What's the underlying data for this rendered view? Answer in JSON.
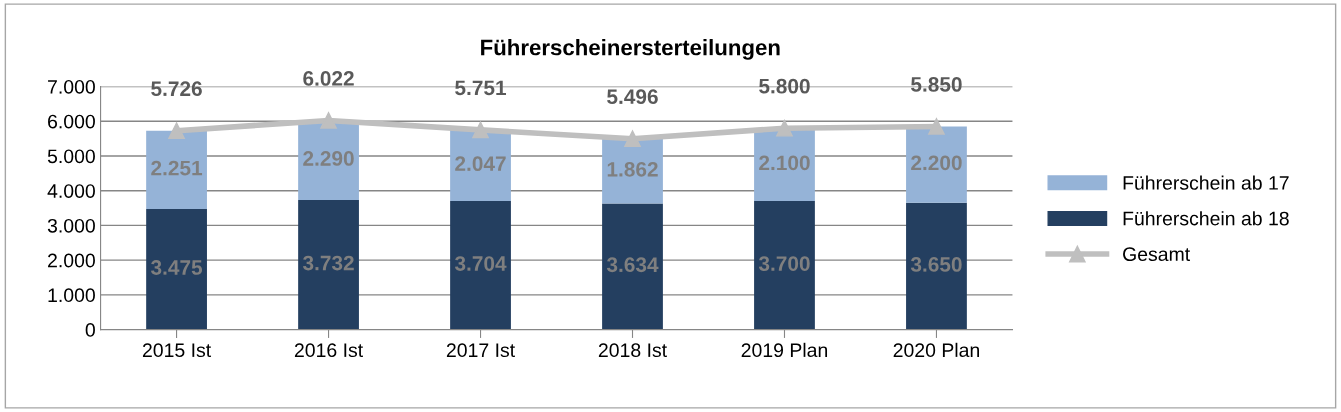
{
  "chart_data": {
    "type": "bar",
    "title": "Führerscheinersterteilungen",
    "stacked": true,
    "categories": [
      "2015 Ist",
      "2016 Ist",
      "2017 Ist",
      "2018 Ist",
      "2019 Plan",
      "2020 Plan"
    ],
    "series": [
      {
        "name": "Führerschein ab 18",
        "color": "#243f60",
        "values": [
          3475,
          3732,
          3704,
          3634,
          3700,
          3650
        ],
        "value_labels": [
          "3.475",
          "3.732",
          "3.704",
          "3.634",
          "3.700",
          "3.650"
        ]
      },
      {
        "name": "Führerschein ab 17",
        "color": "#95b3d7",
        "values": [
          2251,
          2290,
          2047,
          1862,
          2100,
          2200
        ],
        "value_labels": [
          "2.251",
          "2.290",
          "2.047",
          "1.862",
          "2.100",
          "2.200"
        ]
      },
      {
        "name": "Gesamt",
        "type": "line",
        "color": "#bfbfbf",
        "marker": "triangle",
        "values": [
          5726,
          6022,
          5751,
          5496,
          5800,
          5850
        ],
        "value_labels": [
          "5.726",
          "6.022",
          "5.751",
          "5.496",
          "5.800",
          "5.850"
        ]
      }
    ],
    "ylim": [
      0,
      7000
    ],
    "yticks": [
      {
        "value": 0,
        "label": "0"
      },
      {
        "value": 1000,
        "label": "1.000"
      },
      {
        "value": 2000,
        "label": "2.000"
      },
      {
        "value": 3000,
        "label": "3.000"
      },
      {
        "value": 4000,
        "label": "4.000"
      },
      {
        "value": 5000,
        "label": "5.000"
      },
      {
        "value": 6000,
        "label": "6.000"
      },
      {
        "value": 7000,
        "label": "7.000"
      }
    ],
    "grid": "y",
    "legend": "right"
  }
}
